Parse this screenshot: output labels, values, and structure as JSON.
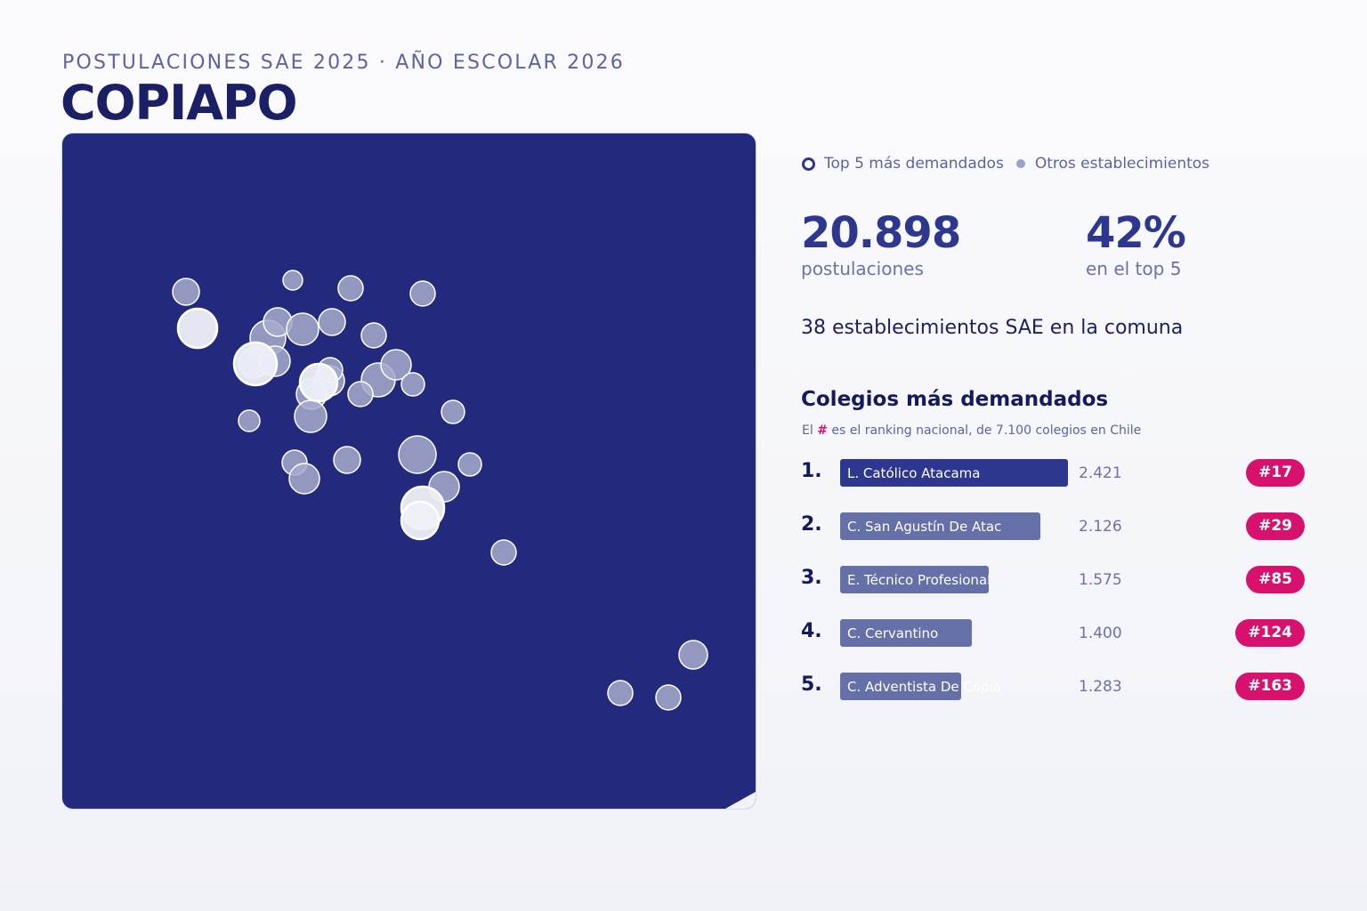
{
  "header": {
    "kicker": "POSTULACIONES SAE 2025 · AÑO ESCOLAR 2026",
    "city": "COPIAPO"
  },
  "legend": {
    "top5": "Top 5 más demandados",
    "others": "Otros establecimientos"
  },
  "stats": {
    "applications_value": "20.898",
    "applications_label": "postulaciones",
    "top5_share_value": "42%",
    "top5_share_label": "en el top 5"
  },
  "schools_count_text": "38 establecimientos SAE en la comuna",
  "ranking": {
    "title": "Colegios más demandados",
    "subtitle_prefix": "El",
    "subtitle_hash": "#",
    "subtitle_suffix": "es el ranking nacional, de 7.100 colegios en Chile",
    "items": [
      {
        "num": "1.",
        "name": "L. Católico Atacama",
        "value": "2.421",
        "value_number": 2421,
        "rank": "#17"
      },
      {
        "num": "2.",
        "name": "C. San Agustín De Atac",
        "value": "2.126",
        "value_number": 2126,
        "rank": "#29"
      },
      {
        "num": "3.",
        "name": "E. Técnico Profesional",
        "value": "1.575",
        "value_number": 1575,
        "rank": "#85"
      },
      {
        "num": "4.",
        "name": "C. Cervantino",
        "value": "1.400",
        "value_number": 1400,
        "rank": "#124"
      },
      {
        "num": "5.",
        "name": "C. Adventista De Copia",
        "value": "1.283",
        "value_number": 1283,
        "rank": "#163"
      }
    ]
  },
  "colors": {
    "map_background": "#232a7e",
    "top_bar": "#2e3790",
    "other_bar": "#6670a8",
    "badge": "#d8116e",
    "marker_other": "#a6abcb",
    "marker_top": "#eef0f8"
  }
}
